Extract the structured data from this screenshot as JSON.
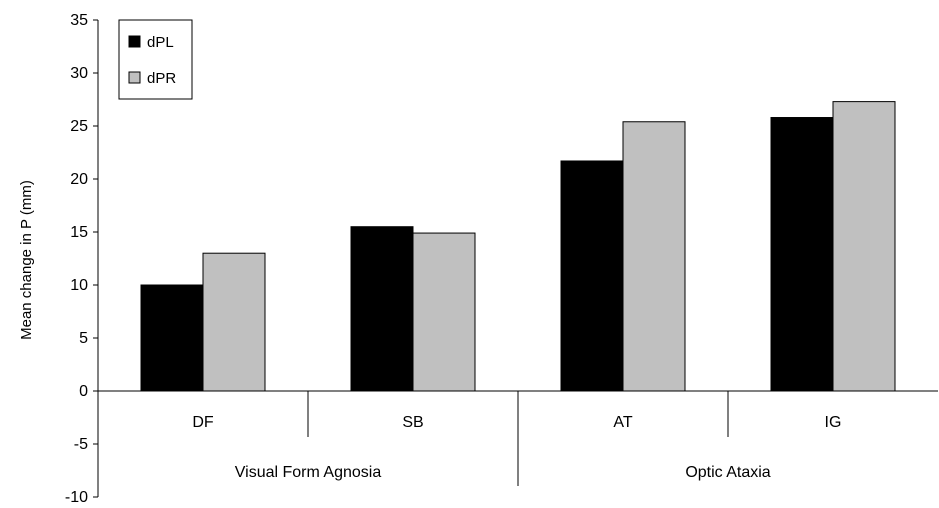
{
  "chart_data": {
    "type": "bar",
    "ylabel": "Mean change in P (mm)",
    "xlabel": "",
    "title": "",
    "ylim": [
      -10,
      35
    ],
    "yticks": [
      -10,
      -5,
      0,
      5,
      10,
      15,
      20,
      25,
      30,
      35
    ],
    "categories": [
      "DF",
      "SB",
      "AT",
      "IG"
    ],
    "groups": [
      {
        "label": "Visual Form Agnosia",
        "categories": [
          "DF",
          "SB"
        ]
      },
      {
        "label": "Optic Ataxia",
        "categories": [
          "AT",
          "IG"
        ]
      }
    ],
    "series": [
      {
        "name": "dPL",
        "color": "#000000",
        "values": [
          10.0,
          15.5,
          21.7,
          25.8
        ]
      },
      {
        "name": "dPR",
        "color": "#c0c0c0",
        "values": [
          13.0,
          14.9,
          25.4,
          27.3
        ]
      }
    ],
    "legend": {
      "position": "top-left"
    },
    "grid": false
  }
}
